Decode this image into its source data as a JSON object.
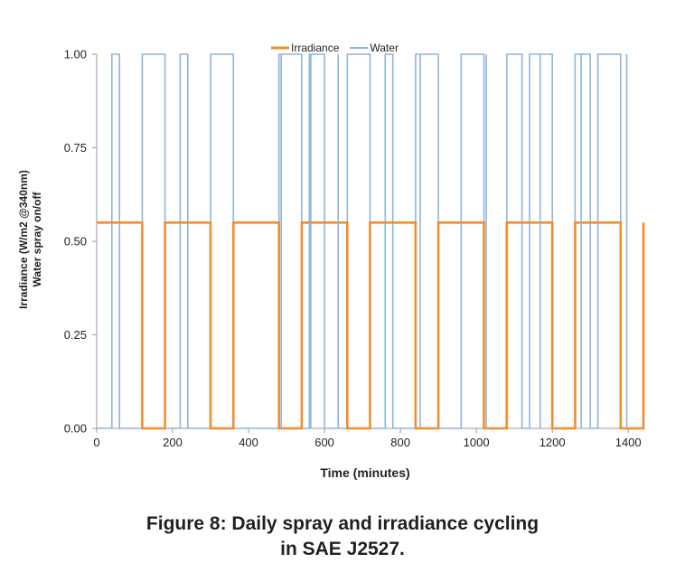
{
  "chart_data": {
    "type": "line",
    "title": "",
    "xlabel": "Time (minutes)",
    "ylabel_lines": [
      "Irradiance (W/m2 @340nm)",
      "Water spray on/off"
    ],
    "xlim": [
      0,
      1440
    ],
    "ylim": [
      0,
      1
    ],
    "xticks": [
      0,
      200,
      400,
      600,
      800,
      1000,
      1200,
      1400
    ],
    "xtick_labels": [
      "0",
      "200",
      "400",
      "600",
      "800",
      "1000",
      "1200",
      "1400"
    ],
    "yticks": [
      0,
      0.25,
      0.5,
      0.75,
      1.0
    ],
    "ytick_labels": [
      "0.00",
      "0.25",
      "0.50",
      "0.75",
      "1.00"
    ],
    "grid": false,
    "legend_position": "top-center",
    "series": [
      {
        "name": "Irradiance",
        "color": "#f28e2b",
        "x": [
          0,
          120,
          120,
          180,
          180,
          300,
          300,
          360,
          360,
          480,
          480,
          540,
          540,
          660,
          660,
          720,
          720,
          840,
          840,
          900,
          900,
          1020,
          1020,
          1080,
          1080,
          1200,
          1200,
          1260,
          1260,
          1380,
          1380,
          1440,
          1440
        ],
        "y": [
          0.55,
          0.55,
          0,
          0,
          0.55,
          0.55,
          0,
          0,
          0.55,
          0.55,
          0,
          0,
          0.55,
          0.55,
          0,
          0,
          0.55,
          0.55,
          0,
          0,
          0.55,
          0.55,
          0,
          0,
          0.55,
          0.55,
          0,
          0,
          0.55,
          0.55,
          0,
          0,
          0.55
        ]
      },
      {
        "name": "Water",
        "color": "#8fb4dd",
        "x": [
          0,
          40,
          40,
          60,
          60,
          120,
          120,
          180,
          180,
          220,
          220,
          240,
          240,
          300,
          300,
          360,
          360,
          480,
          480,
          540,
          540,
          560,
          560,
          600,
          600,
          660,
          660,
          720,
          720,
          760,
          760,
          780,
          780,
          840,
          840,
          900,
          900,
          960,
          960,
          1020,
          1020,
          1080,
          1080,
          1120,
          1120,
          1140,
          1140,
          1200,
          1200,
          1260,
          1260,
          1300,
          1300,
          1320,
          1320,
          1380,
          1380,
          1440
        ],
        "y": [
          0,
          0,
          1,
          1,
          0,
          0,
          1,
          1,
          0,
          0,
          1,
          1,
          0,
          0,
          1,
          1,
          0,
          0,
          1,
          1,
          0,
          0,
          1,
          1,
          0,
          0,
          1,
          1,
          0,
          0,
          1,
          1,
          0,
          0,
          1,
          1,
          0,
          0,
          1,
          1,
          0,
          0,
          1,
          1,
          0,
          0,
          1,
          1,
          0,
          0,
          1,
          1,
          0,
          0,
          1,
          1,
          0,
          0
        ]
      }
    ],
    "impulses": [
      {
        "series": "Water",
        "x": [
          486,
          564,
          636,
          852,
          1026,
          1168,
          1276,
          1396
        ]
      }
    ]
  },
  "caption": {
    "line1": "Figure 8:  Daily spray and irradiance cycling",
    "line2": "in SAE J2527."
  }
}
